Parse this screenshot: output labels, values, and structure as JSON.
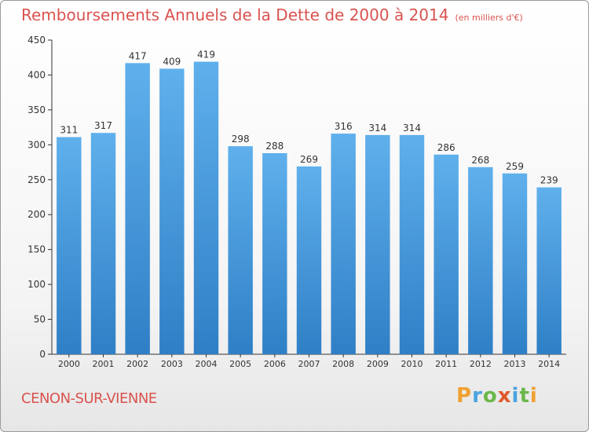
{
  "title": "Remboursements Annuels de la Dette de 2000 à 2014",
  "unit_note": "(en milliers d'€)",
  "location": "CENON-SUR-VIENNE",
  "logo": {
    "text": "Proxiti",
    "letter_colors": [
      "#f0a030",
      "#4aa3df",
      "#6bb84a",
      "#e05a2b",
      "#4aa3df",
      "#6bb84a",
      "#f0a030"
    ]
  },
  "colors": {
    "bar_top": "#5fb0ec",
    "bar_bottom": "#2f7fc6",
    "axis": "#333333",
    "grid": "#e2e2e2",
    "title": "#d9534f"
  },
  "chart_data": {
    "type": "bar",
    "title": "Remboursements Annuels de la Dette de 2000 à 2014",
    "xlabel": "",
    "ylabel": "",
    "categories": [
      "2000",
      "2001",
      "2002",
      "2003",
      "2004",
      "2005",
      "2006",
      "2007",
      "2008",
      "2009",
      "2010",
      "2011",
      "2012",
      "2013",
      "2014"
    ],
    "values": [
      311,
      317,
      417,
      409,
      419,
      298,
      288,
      269,
      316,
      314,
      314,
      286,
      268,
      259,
      239
    ],
    "ylim": [
      0,
      450
    ],
    "yticks": [
      0,
      50,
      100,
      150,
      200,
      250,
      300,
      350,
      400,
      450
    ],
    "data_labels": true,
    "grid": false
  }
}
